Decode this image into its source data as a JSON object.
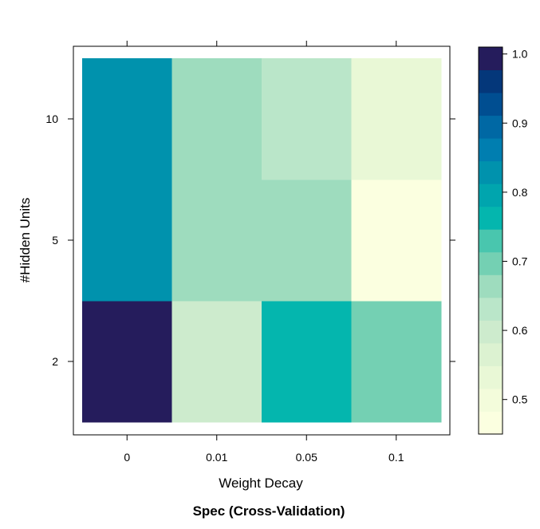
{
  "chart_data": {
    "type": "heatmap",
    "title": "Spec (Cross-Validation)",
    "xlabel": "Weight Decay",
    "ylabel": "#Hidden Units",
    "x_categories": [
      "0",
      "0.01",
      "0.05",
      "0.1"
    ],
    "y_categories": [
      "2",
      "5",
      "10"
    ],
    "values": [
      [
        1.0,
        0.61,
        0.76,
        0.71
      ],
      [
        0.82,
        0.68,
        0.68,
        0.47
      ],
      [
        0.82,
        0.68,
        0.63,
        0.52
      ]
    ],
    "colorbar": {
      "range": [
        0.45,
        1.01
      ],
      "ticks": [
        0.5,
        0.6,
        0.7,
        0.8,
        0.9,
        1.0
      ],
      "tick_labels": [
        "0.5",
        "0.6",
        "0.7",
        "0.8",
        "0.9",
        "1.0"
      ],
      "colors": [
        "#fbffe0",
        "#f3fcdb",
        "#e9f8d6",
        "#dcf2d1",
        "#cdebcd",
        "#bae6c9",
        "#9edcbe",
        "#74d0b3",
        "#49c6ae",
        "#04b6ae",
        "#00a5ae",
        "#0092ad",
        "#007eb0",
        "#0068a4",
        "#004e91",
        "#04377a",
        "#251c5c"
      ]
    }
  }
}
